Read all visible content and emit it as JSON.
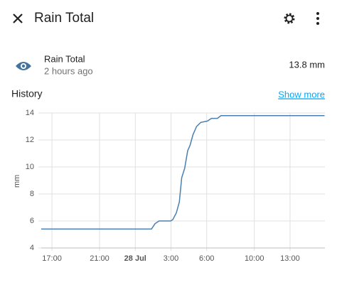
{
  "header": {
    "title": "Rain Total"
  },
  "entity": {
    "name": "Rain Total",
    "time": "2 hours ago",
    "state": "13.8 mm"
  },
  "history": {
    "title": "History",
    "link": "Show more"
  },
  "chart_data": {
    "type": "line",
    "ylabel": "mm",
    "x": [
      -7.9,
      1.36,
      1.66,
      2.0,
      2.97,
      3.15,
      3.45,
      3.7,
      3.9,
      4.15,
      4.4,
      4.6,
      4.85,
      5.15,
      5.5,
      6.06,
      6.4,
      6.9,
      7.2,
      15.9
    ],
    "series": [
      {
        "name": "Rain Total",
        "color": "#4a7fb0",
        "values": [
          5.4,
          5.4,
          5.8,
          6.0,
          6.0,
          6.1,
          6.6,
          7.4,
          9.2,
          9.9,
          11.2,
          11.6,
          12.4,
          13.0,
          13.3,
          13.4,
          13.6,
          13.6,
          13.8,
          13.8
        ]
      }
    ],
    "xlim": [
      -7.9,
      15.93
    ],
    "xticks": [
      {
        "value": -7,
        "label": "17:00"
      },
      {
        "value": -3,
        "label": "21:00"
      },
      {
        "value": 0,
        "label": "28 Jul"
      },
      {
        "value": 3,
        "label": "3:00"
      },
      {
        "value": 6,
        "label": "6:00"
      },
      {
        "value": 10,
        "label": "10:00"
      },
      {
        "value": 13,
        "label": "13:00"
      }
    ],
    "ylim": [
      4,
      14
    ],
    "yticks": [
      4,
      6,
      8,
      10,
      12,
      14
    ],
    "grid": true
  }
}
